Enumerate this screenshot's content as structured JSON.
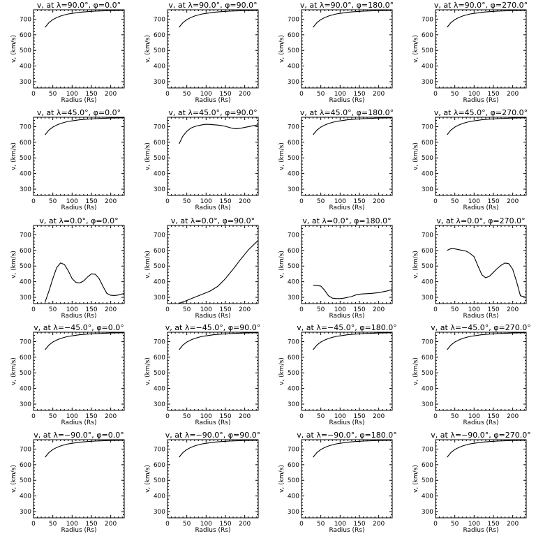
{
  "chart_data": [
    {
      "type": "line",
      "title": "v, at λ=90.0°, φ=0.0°",
      "xlabel": "Radius (Rs)",
      "ylabel": "v, (km/s)",
      "xlim": [
        0,
        235
      ],
      "ylim": [
        260,
        760
      ],
      "xticks": [
        0,
        50,
        100,
        150,
        200
      ],
      "yticks": [
        300,
        400,
        500,
        600,
        700
      ],
      "x": [
        30,
        40,
        50,
        60,
        70,
        80,
        90,
        100,
        120,
        140,
        160,
        180,
        200,
        220,
        235
      ],
      "y": [
        648,
        678,
        697,
        710,
        720,
        727,
        733,
        737,
        744,
        748,
        751,
        753,
        755,
        756,
        757
      ]
    },
    {
      "type": "line",
      "title": "v, at λ=90.0°, φ=90.0°",
      "xlabel": "Radius (Rs)",
      "ylabel": "v, (km/s)",
      "xlim": [
        0,
        235
      ],
      "ylim": [
        260,
        760
      ],
      "xticks": [
        0,
        50,
        100,
        150,
        200
      ],
      "yticks": [
        300,
        400,
        500,
        600,
        700
      ],
      "x": [
        30,
        40,
        50,
        60,
        70,
        80,
        90,
        100,
        120,
        140,
        160,
        180,
        200,
        220,
        235
      ],
      "y": [
        648,
        678,
        697,
        710,
        720,
        727,
        733,
        737,
        744,
        748,
        751,
        753,
        755,
        756,
        757
      ]
    },
    {
      "type": "line",
      "title": "v, at λ=90.0°, φ=180.0°",
      "xlabel": "Radius (Rs)",
      "ylabel": "v, (km/s)",
      "xlim": [
        0,
        235
      ],
      "ylim": [
        260,
        760
      ],
      "xticks": [
        0,
        50,
        100,
        150,
        200
      ],
      "yticks": [
        300,
        400,
        500,
        600,
        700
      ],
      "x": [
        30,
        40,
        50,
        60,
        70,
        80,
        90,
        100,
        120,
        140,
        160,
        180,
        200,
        220,
        235
      ],
      "y": [
        648,
        678,
        697,
        710,
        720,
        727,
        733,
        737,
        744,
        748,
        751,
        753,
        755,
        756,
        757
      ]
    },
    {
      "type": "line",
      "title": "v, at λ=90.0°, φ=270.0°",
      "xlabel": "Radius (Rs)",
      "ylabel": "v, (km/s)",
      "xlim": [
        0,
        235
      ],
      "ylim": [
        260,
        760
      ],
      "xticks": [
        0,
        50,
        100,
        150,
        200
      ],
      "yticks": [
        300,
        400,
        500,
        600,
        700
      ],
      "x": [
        30,
        40,
        50,
        60,
        70,
        80,
        90,
        100,
        120,
        140,
        160,
        180,
        200,
        220,
        235
      ],
      "y": [
        648,
        678,
        697,
        710,
        720,
        727,
        733,
        737,
        744,
        748,
        751,
        753,
        755,
        756,
        757
      ]
    },
    {
      "type": "line",
      "title": "v, at λ=45.0°, φ=0.0°",
      "xlabel": "Radius (Rs)",
      "ylabel": "v, (km/s)",
      "xlim": [
        0,
        235
      ],
      "ylim": [
        260,
        760
      ],
      "xticks": [
        0,
        50,
        100,
        150,
        200
      ],
      "yticks": [
        300,
        400,
        500,
        600,
        700
      ],
      "x": [
        30,
        40,
        50,
        60,
        70,
        80,
        90,
        100,
        120,
        140,
        160,
        180,
        200,
        220,
        235
      ],
      "y": [
        648,
        678,
        697,
        710,
        720,
        727,
        733,
        737,
        744,
        748,
        751,
        753,
        755,
        756,
        757
      ]
    },
    {
      "type": "line",
      "title": "v, at λ=45.0°, φ=90.0°",
      "xlabel": "Radius (Rs)",
      "ylabel": "v, (km/s)",
      "xlim": [
        0,
        235
      ],
      "ylim": [
        260,
        760
      ],
      "xticks": [
        0,
        50,
        100,
        150,
        200
      ],
      "yticks": [
        300,
        400,
        500,
        600,
        700
      ],
      "x": [
        30,
        40,
        50,
        60,
        70,
        80,
        90,
        100,
        110,
        120,
        130,
        140,
        150,
        160,
        170,
        180,
        190,
        200,
        210,
        220,
        235
      ],
      "y": [
        590,
        640,
        670,
        690,
        700,
        707,
        712,
        715,
        714,
        712,
        710,
        707,
        702,
        695,
        688,
        687,
        690,
        695,
        700,
        705,
        712
      ]
    },
    {
      "type": "line",
      "title": "v, at λ=45.0°, φ=180.0°",
      "xlabel": "Radius (Rs)",
      "ylabel": "v, (km/s)",
      "xlim": [
        0,
        235
      ],
      "ylim": [
        260,
        760
      ],
      "xticks": [
        0,
        50,
        100,
        150,
        200
      ],
      "yticks": [
        300,
        400,
        500,
        600,
        700
      ],
      "x": [
        30,
        40,
        50,
        60,
        70,
        80,
        90,
        100,
        120,
        140,
        160,
        180,
        200,
        220,
        235
      ],
      "y": [
        648,
        678,
        697,
        710,
        720,
        727,
        733,
        737,
        744,
        748,
        751,
        753,
        755,
        756,
        757
      ]
    },
    {
      "type": "line",
      "title": "v, at λ=45.0°, φ=270.0°",
      "xlabel": "Radius (Rs)",
      "ylabel": "v, (km/s)",
      "xlim": [
        0,
        235
      ],
      "ylim": [
        260,
        760
      ],
      "xticks": [
        0,
        50,
        100,
        150,
        200
      ],
      "yticks": [
        300,
        400,
        500,
        600,
        700
      ],
      "x": [
        30,
        40,
        50,
        60,
        70,
        80,
        90,
        100,
        120,
        140,
        160,
        180,
        200,
        220,
        235
      ],
      "y": [
        648,
        678,
        697,
        710,
        720,
        727,
        733,
        737,
        744,
        748,
        751,
        753,
        755,
        756,
        757
      ]
    },
    {
      "type": "line",
      "title": "v, at λ=0.0°, φ=0.0°",
      "xlabel": "Radius (Rs)",
      "ylabel": "v, (km/s)",
      "xlim": [
        0,
        235
      ],
      "ylim": [
        260,
        760
      ],
      "xticks": [
        0,
        50,
        100,
        150,
        200
      ],
      "yticks": [
        300,
        400,
        500,
        600,
        700
      ],
      "x": [
        30,
        40,
        50,
        60,
        70,
        80,
        90,
        100,
        110,
        120,
        130,
        140,
        150,
        160,
        170,
        180,
        190,
        200,
        210,
        220,
        235
      ],
      "y": [
        270,
        340,
        420,
        490,
        520,
        510,
        470,
        420,
        395,
        392,
        405,
        430,
        450,
        448,
        420,
        370,
        325,
        313,
        312,
        315,
        325
      ]
    },
    {
      "type": "line",
      "title": "v, at λ=0.0°, φ=90.0°",
      "xlabel": "Radius (Rs)",
      "ylabel": "v, (km/s)",
      "xlim": [
        0,
        235
      ],
      "ylim": [
        260,
        760
      ],
      "xticks": [
        0,
        50,
        100,
        150,
        200
      ],
      "yticks": [
        300,
        400,
        500,
        600,
        700
      ],
      "x": [
        30,
        50,
        70,
        90,
        110,
        130,
        150,
        170,
        190,
        210,
        235
      ],
      "y": [
        262,
        280,
        300,
        320,
        340,
        370,
        420,
        480,
        545,
        605,
        665
      ]
    },
    {
      "type": "line",
      "title": "v, at λ=0.0°, φ=180.0°",
      "xlabel": "Radius (Rs)",
      "ylabel": "v, (km/s)",
      "xlim": [
        0,
        235
      ],
      "ylim": [
        260,
        760
      ],
      "xticks": [
        0,
        50,
        100,
        150,
        200
      ],
      "yticks": [
        300,
        400,
        500,
        600,
        700
      ],
      "x": [
        30,
        40,
        50,
        60,
        70,
        80,
        90,
        100,
        110,
        120,
        130,
        140,
        150,
        160,
        180,
        200,
        220,
        235
      ],
      "y": [
        378,
        375,
        372,
        345,
        310,
        295,
        292,
        292,
        295,
        300,
        305,
        315,
        320,
        322,
        325,
        330,
        340,
        350
      ]
    },
    {
      "type": "line",
      "title": "v, at λ=0.0°, φ=270.0°",
      "xlabel": "Radius (Rs)",
      "ylabel": "v, (km/s)",
      "xlim": [
        0,
        235
      ],
      "ylim": [
        260,
        760
      ],
      "xticks": [
        0,
        50,
        100,
        150,
        200
      ],
      "yticks": [
        300,
        400,
        500,
        600,
        700
      ],
      "x": [
        30,
        40,
        50,
        60,
        70,
        80,
        90,
        100,
        110,
        120,
        130,
        140,
        150,
        160,
        170,
        180,
        190,
        200,
        210,
        220,
        235
      ],
      "y": [
        600,
        612,
        610,
        605,
        600,
        595,
        580,
        560,
        500,
        445,
        425,
        435,
        460,
        485,
        505,
        520,
        515,
        480,
        400,
        310,
        300
      ]
    },
    {
      "type": "line",
      "title": "v, at λ=−45.0°, φ=0.0°",
      "xlabel": "Radius (Rs)",
      "ylabel": "v, (km/s)",
      "xlim": [
        0,
        235
      ],
      "ylim": [
        260,
        760
      ],
      "xticks": [
        0,
        50,
        100,
        150,
        200
      ],
      "yticks": [
        300,
        400,
        500,
        600,
        700
      ],
      "x": [
        30,
        40,
        50,
        60,
        70,
        80,
        90,
        100,
        120,
        140,
        160,
        180,
        200,
        220,
        235
      ],
      "y": [
        648,
        678,
        697,
        710,
        720,
        727,
        733,
        737,
        744,
        748,
        751,
        753,
        755,
        756,
        757
      ]
    },
    {
      "type": "line",
      "title": "v, at λ=−45.0°, φ=90.0°",
      "xlabel": "Radius (Rs)",
      "ylabel": "v, (km/s)",
      "xlim": [
        0,
        235
      ],
      "ylim": [
        260,
        760
      ],
      "xticks": [
        0,
        50,
        100,
        150,
        200
      ],
      "yticks": [
        300,
        400,
        500,
        600,
        700
      ],
      "x": [
        30,
        40,
        50,
        60,
        70,
        80,
        90,
        100,
        120,
        140,
        160,
        180,
        200,
        220,
        235
      ],
      "y": [
        648,
        678,
        697,
        710,
        720,
        727,
        733,
        737,
        744,
        748,
        751,
        753,
        755,
        756,
        757
      ]
    },
    {
      "type": "line",
      "title": "v, at λ=−45.0°, φ=180.0°",
      "xlabel": "Radius (Rs)",
      "ylabel": "v, (km/s)",
      "xlim": [
        0,
        235
      ],
      "ylim": [
        260,
        760
      ],
      "xticks": [
        0,
        50,
        100,
        150,
        200
      ],
      "yticks": [
        300,
        400,
        500,
        600,
        700
      ],
      "x": [
        30,
        40,
        50,
        60,
        70,
        80,
        90,
        100,
        120,
        140,
        160,
        180,
        200,
        220,
        235
      ],
      "y": [
        648,
        678,
        697,
        710,
        720,
        727,
        733,
        737,
        744,
        748,
        751,
        753,
        755,
        756,
        757
      ]
    },
    {
      "type": "line",
      "title": "v, at λ=−45.0°, φ=270.0°",
      "xlabel": "Radius (Rs)",
      "ylabel": "v, (km/s)",
      "xlim": [
        0,
        235
      ],
      "ylim": [
        260,
        760
      ],
      "xticks": [
        0,
        50,
        100,
        150,
        200
      ],
      "yticks": [
        300,
        400,
        500,
        600,
        700
      ],
      "x": [
        30,
        40,
        50,
        60,
        70,
        80,
        90,
        100,
        120,
        140,
        160,
        180,
        200,
        220,
        235
      ],
      "y": [
        648,
        678,
        697,
        710,
        720,
        727,
        733,
        737,
        744,
        748,
        751,
        753,
        755,
        756,
        757
      ]
    },
    {
      "type": "line",
      "title": "v, at λ=−90.0°, φ=0.0°",
      "xlabel": "Radius (Rs)",
      "ylabel": "v, (km/s)",
      "xlim": [
        0,
        235
      ],
      "ylim": [
        260,
        760
      ],
      "xticks": [
        0,
        50,
        100,
        150,
        200
      ],
      "yticks": [
        300,
        400,
        500,
        600,
        700
      ],
      "x": [
        30,
        40,
        50,
        60,
        70,
        80,
        90,
        100,
        120,
        140,
        160,
        180,
        200,
        220,
        235
      ],
      "y": [
        648,
        678,
        697,
        710,
        720,
        727,
        733,
        737,
        744,
        748,
        751,
        753,
        755,
        756,
        757
      ]
    },
    {
      "type": "line",
      "title": "v, at λ=−90.0°, φ=90.0°",
      "xlabel": "Radius (Rs)",
      "ylabel": "v, (km/s)",
      "xlim": [
        0,
        235
      ],
      "ylim": [
        260,
        760
      ],
      "xticks": [
        0,
        50,
        100,
        150,
        200
      ],
      "yticks": [
        300,
        400,
        500,
        600,
        700
      ],
      "x": [
        30,
        40,
        50,
        60,
        70,
        80,
        90,
        100,
        120,
        140,
        160,
        180,
        200,
        220,
        235
      ],
      "y": [
        648,
        678,
        697,
        710,
        720,
        727,
        733,
        737,
        744,
        748,
        751,
        753,
        755,
        756,
        757
      ]
    },
    {
      "type": "line",
      "title": "v, at λ=−90.0°, φ=180.0°",
      "xlabel": "Radius (Rs)",
      "ylabel": "v, (km/s)",
      "xlim": [
        0,
        235
      ],
      "ylim": [
        260,
        760
      ],
      "xticks": [
        0,
        50,
        100,
        150,
        200
      ],
      "yticks": [
        300,
        400,
        500,
        600,
        700
      ],
      "x": [
        30,
        40,
        50,
        60,
        70,
        80,
        90,
        100,
        120,
        140,
        160,
        180,
        200,
        220,
        235
      ],
      "y": [
        648,
        678,
        697,
        710,
        720,
        727,
        733,
        737,
        744,
        748,
        751,
        753,
        755,
        756,
        757
      ]
    },
    {
      "type": "line",
      "title": "v, at λ=−90.0°, φ=270.0°",
      "xlabel": "Radius (Rs)",
      "ylabel": "v, (km/s)",
      "xlim": [
        0,
        235
      ],
      "ylim": [
        260,
        760
      ],
      "xticks": [
        0,
        50,
        100,
        150,
        200
      ],
      "yticks": [
        300,
        400,
        500,
        600,
        700
      ],
      "x": [
        30,
        40,
        50,
        60,
        70,
        80,
        90,
        100,
        120,
        140,
        160,
        180,
        200,
        220,
        235
      ],
      "y": [
        648,
        678,
        697,
        710,
        720,
        727,
        733,
        737,
        744,
        748,
        751,
        753,
        755,
        756,
        757
      ]
    }
  ]
}
